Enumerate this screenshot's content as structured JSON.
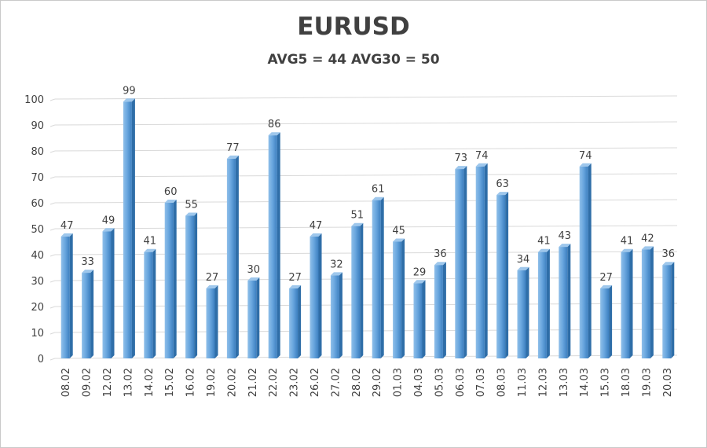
{
  "chart_data": {
    "type": "bar",
    "title": "EURUSD",
    "subtitle": "AVG5 = 44 AVG30 = 50",
    "xlabel": "",
    "ylabel": "",
    "ylim": [
      0,
      100
    ],
    "yticks": [
      0,
      10,
      20,
      30,
      40,
      50,
      60,
      70,
      80,
      90,
      100
    ],
    "grid": true,
    "legend": "none",
    "colors": {
      "bar": "#5b9bd5",
      "bar_light": "#9ec7ec",
      "bar_dark": "#2f6ea8",
      "text": "#404040",
      "grid": "#d9d9d9"
    },
    "categories": [
      "08.02",
      "09.02",
      "12.02",
      "13.02",
      "14.02",
      "15.02",
      "16.02",
      "19.02",
      "20.02",
      "21.02",
      "22.02",
      "23.02",
      "26.02",
      "27.02",
      "28.02",
      "29.02",
      "01.03",
      "04.03",
      "05.03",
      "06.03",
      "07.03",
      "08.03",
      "11.03",
      "12.03",
      "13.03",
      "14.03",
      "15.03",
      "18.03",
      "19.03",
      "20.03"
    ],
    "values": [
      47,
      33,
      49,
      99,
      41,
      60,
      55,
      27,
      77,
      30,
      86,
      27,
      47,
      32,
      51,
      61,
      45,
      29,
      36,
      73,
      74,
      63,
      34,
      41,
      43,
      74,
      27,
      41,
      42,
      36
    ]
  }
}
